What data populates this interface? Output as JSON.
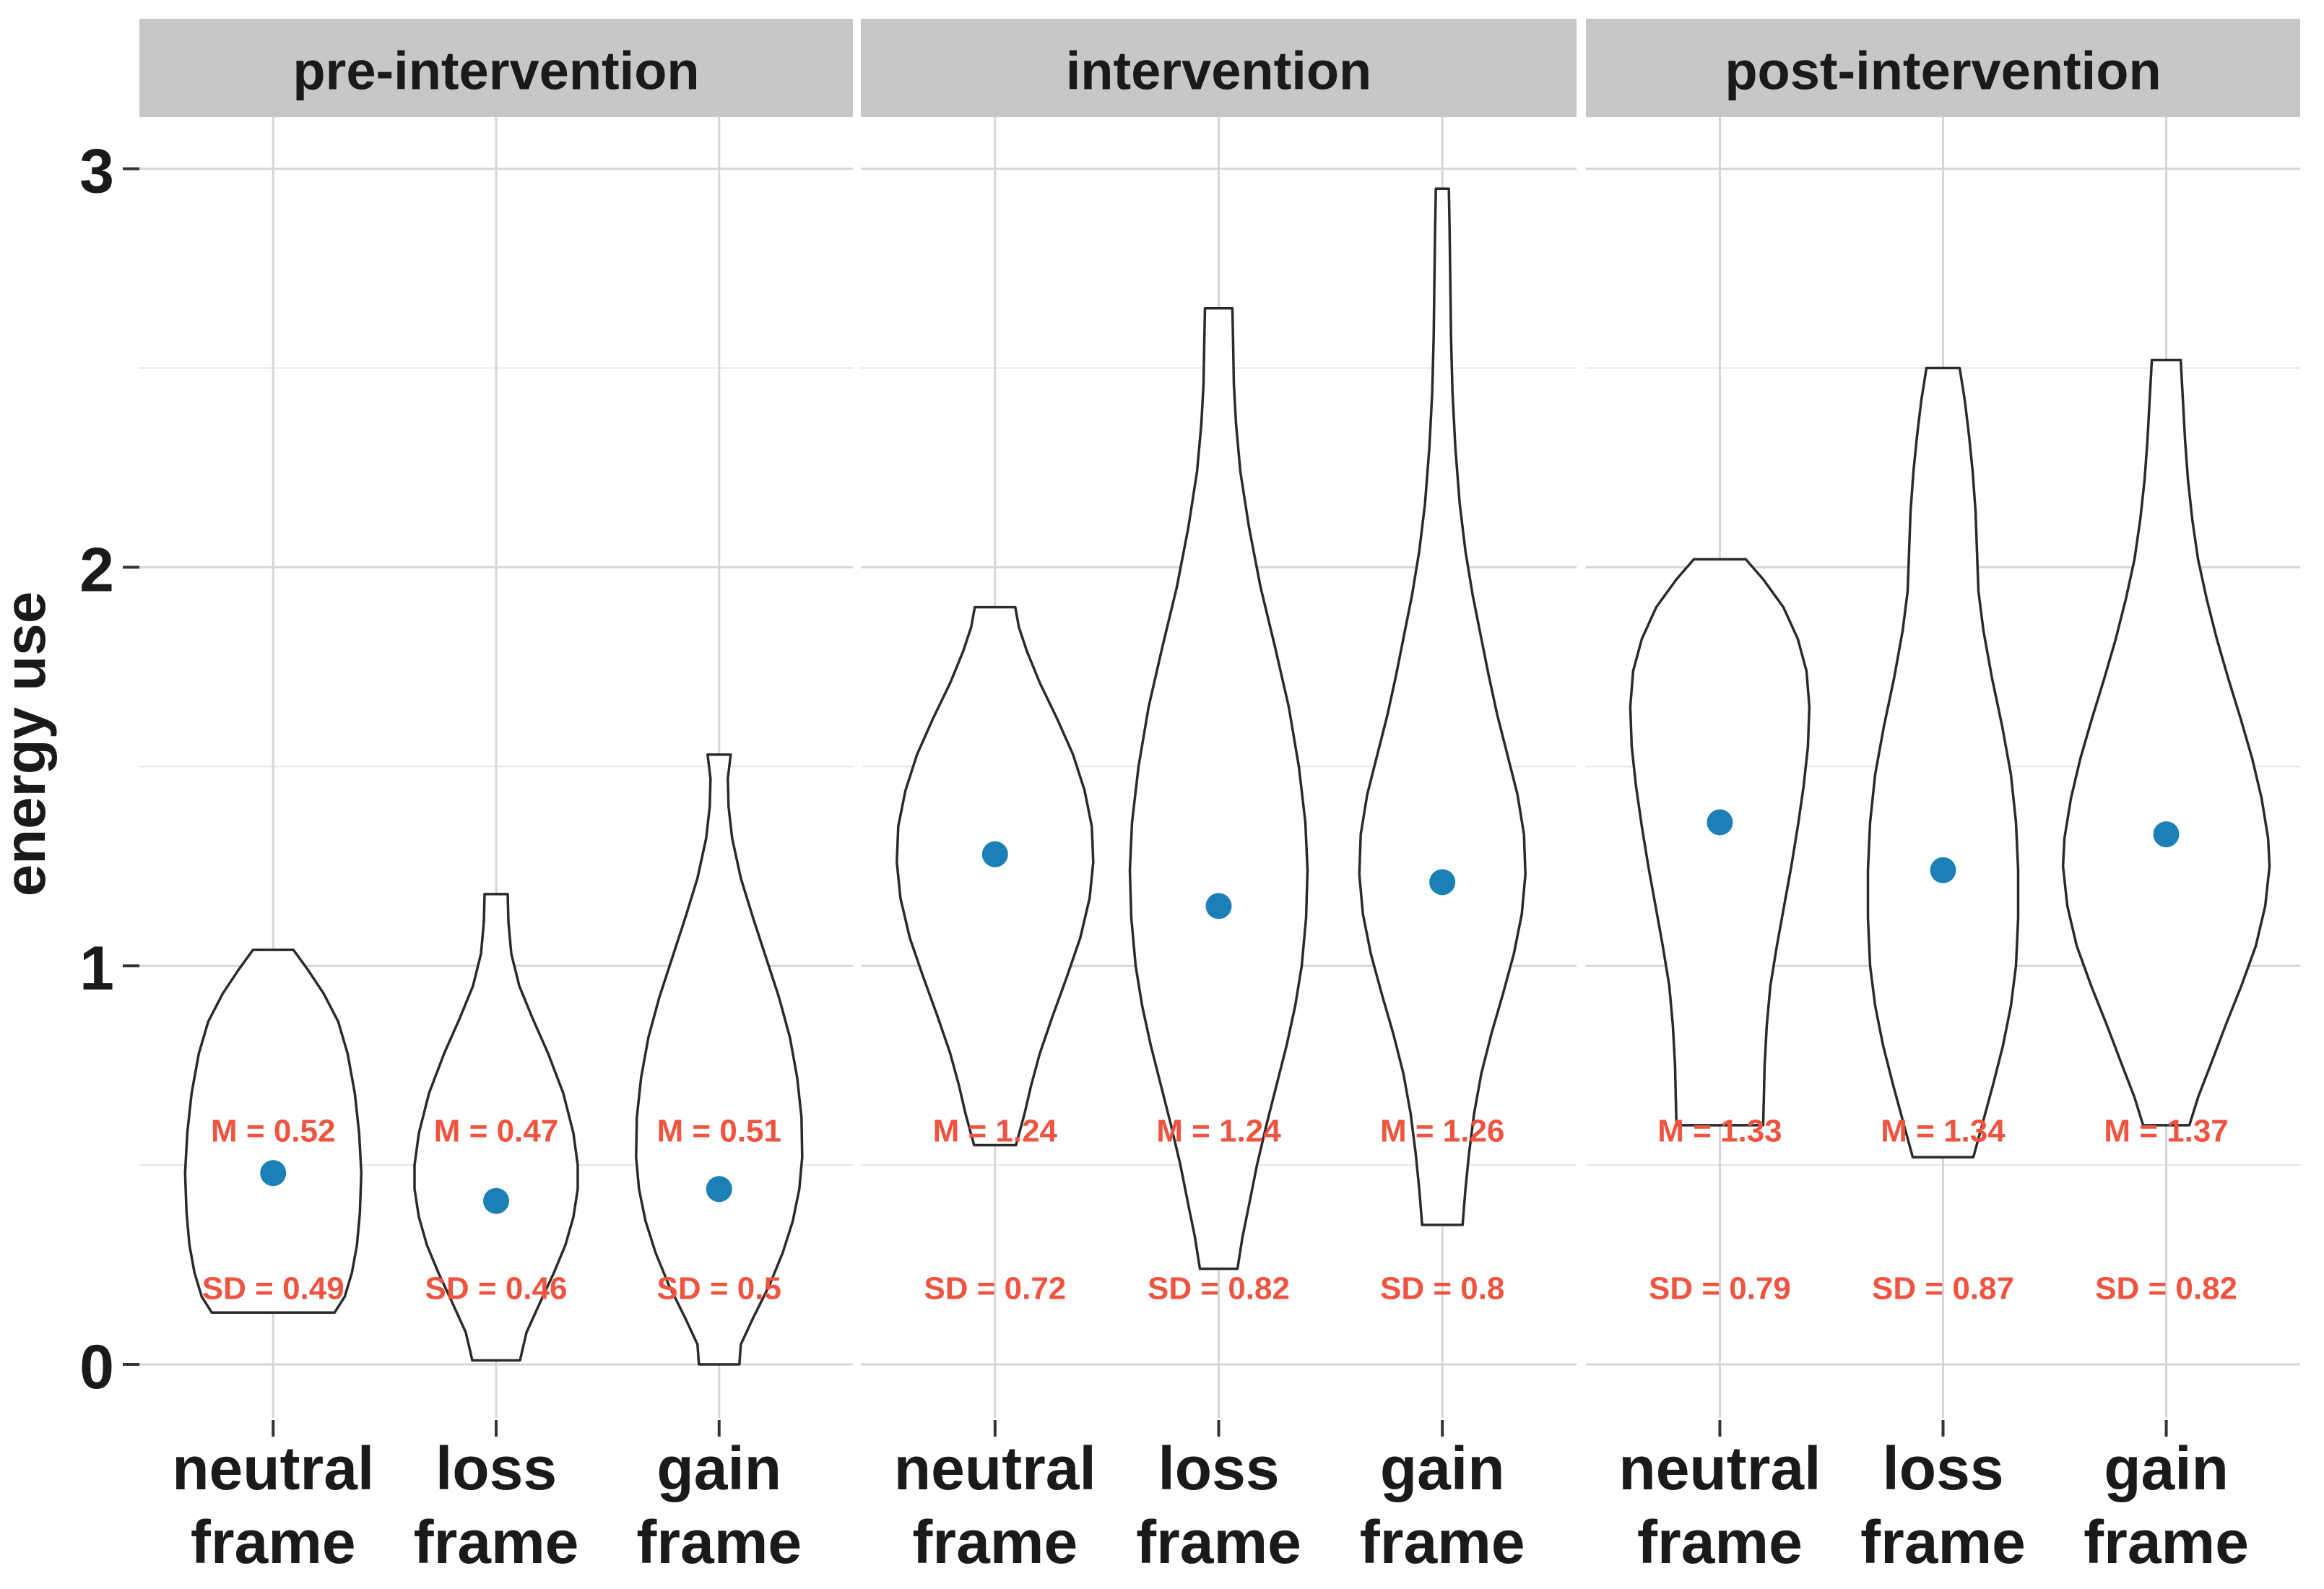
{
  "colors": {
    "dot": "#1b80b6",
    "annotation": "#ee5440",
    "strip_bg": "#c7c7c7",
    "strip_text": "#1a1a1a",
    "violin_outline": "#2a2a2a",
    "violin_fill": "#ffffff",
    "grid_major": "#d6d6d6",
    "grid_minor": "#e4e4e4",
    "tick_mark": "#333333",
    "axis_text": "#1a1a1a"
  },
  "chart_data": {
    "type": "violin",
    "ylabel": "energy use",
    "xlabel": "",
    "ylim": [
      0,
      3
    ],
    "y_ticks": [
      0,
      1,
      2,
      3
    ],
    "y_tick_labels": [
      "0",
      "1",
      "2",
      "3"
    ],
    "y_minor_ticks": [
      0.5,
      1.5,
      2.5
    ],
    "grid": true,
    "legend_position": "none",
    "annotation_rows": {
      "mean_y": 0.585,
      "sd_y": 0.19
    },
    "categories": [
      "neutral frame",
      "loss frame",
      "gain frame"
    ],
    "category_lines": [
      [
        "neutral",
        "frame"
      ],
      [
        "loss",
        "frame"
      ],
      [
        "gain",
        "frame"
      ]
    ],
    "facets": [
      {
        "label": "pre-intervention",
        "groups": [
          {
            "category": "neutral frame",
            "mean": 0.52,
            "sd": 0.49,
            "dot_value": 0.48,
            "mean_label": "M = 0.52",
            "sd_label": "SD = 0.49",
            "outline": [
              [
                1.04,
                28
              ],
              [
                0.99,
                48
              ],
              [
                0.93,
                70
              ],
              [
                0.86,
                90
              ],
              [
                0.78,
                103
              ],
              [
                0.68,
                113
              ],
              [
                0.58,
                119
              ],
              [
                0.48,
                122
              ],
              [
                0.38,
                120
              ],
              [
                0.3,
                116
              ],
              [
                0.23,
                109
              ],
              [
                0.17,
                99
              ],
              [
                0.13,
                85
              ]
            ]
          },
          {
            "category": "loss frame",
            "mean": 0.47,
            "sd": 0.46,
            "dot_value": 0.41,
            "mean_label": "M = 0.47",
            "sd_label": "SD = 0.46",
            "outline": [
              [
                1.18,
                16
              ],
              [
                1.11,
                17
              ],
              [
                1.03,
                21
              ],
              [
                0.95,
                32
              ],
              [
                0.87,
                50
              ],
              [
                0.78,
                72
              ],
              [
                0.68,
                93
              ],
              [
                0.58,
                107
              ],
              [
                0.5,
                113
              ],
              [
                0.44,
                113
              ],
              [
                0.37,
                107
              ],
              [
                0.3,
                96
              ],
              [
                0.23,
                80
              ],
              [
                0.16,
                62
              ],
              [
                0.08,
                42
              ],
              [
                0.01,
                33
              ]
            ]
          },
          {
            "category": "gain frame",
            "mean": 0.51,
            "sd": 0.5,
            "dot_value": 0.44,
            "mean_label": "M = 0.51",
            "sd_label": "SD = 0.5",
            "outline": [
              [
                1.53,
                16
              ],
              [
                1.47,
                12
              ],
              [
                1.4,
                13
              ],
              [
                1.32,
                18
              ],
              [
                1.22,
                30
              ],
              [
                1.12,
                47
              ],
              [
                1.02,
                65
              ],
              [
                0.92,
                83
              ],
              [
                0.82,
                98
              ],
              [
                0.72,
                108
              ],
              [
                0.62,
                114
              ],
              [
                0.52,
                115
              ],
              [
                0.44,
                111
              ],
              [
                0.36,
                102
              ],
              [
                0.28,
                88
              ],
              [
                0.2,
                70
              ],
              [
                0.12,
                48
              ],
              [
                0.05,
                30
              ],
              [
                0.0,
                28
              ]
            ]
          }
        ]
      },
      {
        "label": "intervention",
        "groups": [
          {
            "category": "neutral frame",
            "mean": 1.24,
            "sd": 0.72,
            "dot_value": 1.28,
            "mean_label": "M = 1.24",
            "sd_label": "SD = 0.72",
            "outline": [
              [
                1.9,
                28
              ],
              [
                1.85,
                33
              ],
              [
                1.79,
                44
              ],
              [
                1.71,
                62
              ],
              [
                1.62,
                86
              ],
              [
                1.53,
                108
              ],
              [
                1.44,
                124
              ],
              [
                1.35,
                134
              ],
              [
                1.26,
                136
              ],
              [
                1.17,
                131
              ],
              [
                1.07,
                118
              ],
              [
                0.97,
                99
              ],
              [
                0.87,
                79
              ],
              [
                0.78,
                62
              ],
              [
                0.7,
                50
              ],
              [
                0.63,
                41
              ],
              [
                0.55,
                29
              ]
            ]
          },
          {
            "category": "loss frame",
            "mean": 1.24,
            "sd": 0.82,
            "dot_value": 1.15,
            "mean_label": "M = 1.24",
            "sd_label": "SD = 0.82",
            "outline": [
              [
                2.65,
                19
              ],
              [
                2.56,
                20
              ],
              [
                2.46,
                21
              ],
              [
                2.36,
                24
              ],
              [
                2.24,
                30
              ],
              [
                2.1,
                42
              ],
              [
                1.95,
                58
              ],
              [
                1.8,
                78
              ],
              [
                1.65,
                97
              ],
              [
                1.5,
                111
              ],
              [
                1.36,
                120
              ],
              [
                1.24,
                123
              ],
              [
                1.12,
                121
              ],
              [
                1.0,
                115
              ],
              [
                0.9,
                106
              ],
              [
                0.8,
                94
              ],
              [
                0.7,
                80
              ],
              [
                0.6,
                66
              ],
              [
                0.5,
                53
              ],
              [
                0.4,
                42
              ],
              [
                0.32,
                33
              ],
              [
                0.24,
                26
              ]
            ]
          },
          {
            "category": "gain frame",
            "mean": 1.26,
            "sd": 0.8,
            "dot_value": 1.21,
            "mean_label": "M = 1.26",
            "sd_label": "SD = 0.8",
            "outline": [
              [
                2.95,
                9
              ],
              [
                2.85,
                10
              ],
              [
                2.72,
                11
              ],
              [
                2.58,
                12
              ],
              [
                2.44,
                14
              ],
              [
                2.3,
                18
              ],
              [
                2.16,
                24
              ],
              [
                2.04,
                32
              ],
              [
                1.93,
                42
              ],
              [
                1.83,
                53
              ],
              [
                1.73,
                64
              ],
              [
                1.63,
                76
              ],
              [
                1.53,
                90
              ],
              [
                1.43,
                104
              ],
              [
                1.33,
                113
              ],
              [
                1.23,
                115
              ],
              [
                1.13,
                110
              ],
              [
                1.03,
                99
              ],
              [
                0.93,
                84
              ],
              [
                0.83,
                68
              ],
              [
                0.73,
                54
              ],
              [
                0.63,
                44
              ],
              [
                0.53,
                37
              ],
              [
                0.44,
                32
              ],
              [
                0.35,
                28
              ]
            ]
          }
        ]
      },
      {
        "label": "post-intervention",
        "groups": [
          {
            "category": "neutral frame",
            "mean": 1.33,
            "sd": 0.79,
            "dot_value": 1.36,
            "mean_label": "M = 1.33",
            "sd_label": "SD = 0.79",
            "outline": [
              [
                2.02,
                36
              ],
              [
                1.97,
                60
              ],
              [
                1.9,
                88
              ],
              [
                1.82,
                108
              ],
              [
                1.74,
                120
              ],
              [
                1.65,
                124
              ],
              [
                1.55,
                122
              ],
              [
                1.45,
                116
              ],
              [
                1.35,
                108
              ],
              [
                1.25,
                99
              ],
              [
                1.15,
                89
              ],
              [
                1.05,
                79
              ],
              [
                0.95,
                70
              ],
              [
                0.85,
                65
              ],
              [
                0.75,
                62
              ],
              [
                0.67,
                61
              ],
              [
                0.6,
                60
              ]
            ]
          },
          {
            "category": "loss frame",
            "mean": 1.34,
            "sd": 0.87,
            "dot_value": 1.24,
            "mean_label": "M = 1.34",
            "sd_label": "SD = 0.87",
            "outline": [
              [
                2.5,
                23
              ],
              [
                2.42,
                30
              ],
              [
                2.33,
                36
              ],
              [
                2.24,
                41
              ],
              [
                2.14,
                45
              ],
              [
                2.04,
                47
              ],
              [
                1.94,
                49
              ],
              [
                1.84,
                56
              ],
              [
                1.72,
                68
              ],
              [
                1.6,
                82
              ],
              [
                1.48,
                94
              ],
              [
                1.36,
                101
              ],
              [
                1.24,
                104
              ],
              [
                1.12,
                104
              ],
              [
                1.0,
                101
              ],
              [
                0.9,
                94
              ],
              [
                0.8,
                83
              ],
              [
                0.7,
                69
              ],
              [
                0.6,
                54
              ],
              [
                0.52,
                42
              ]
            ]
          },
          {
            "category": "gain frame",
            "mean": 1.37,
            "sd": 0.82,
            "dot_value": 1.33,
            "mean_label": "M = 1.37",
            "sd_label": "SD = 0.82",
            "outline": [
              [
                2.52,
                20
              ],
              [
                2.42,
                23
              ],
              [
                2.32,
                26
              ],
              [
                2.22,
                30
              ],
              [
                2.12,
                36
              ],
              [
                2.02,
                44
              ],
              [
                1.92,
                56
              ],
              [
                1.82,
                70
              ],
              [
                1.72,
                86
              ],
              [
                1.62,
                103
              ],
              [
                1.52,
                119
              ],
              [
                1.42,
                132
              ],
              [
                1.32,
                141
              ],
              [
                1.25,
                143
              ],
              [
                1.15,
                137
              ],
              [
                1.05,
                124
              ],
              [
                0.95,
                104
              ],
              [
                0.85,
                82
              ],
              [
                0.75,
                61
              ],
              [
                0.67,
                44
              ],
              [
                0.6,
                32
              ]
            ]
          }
        ]
      }
    ]
  }
}
